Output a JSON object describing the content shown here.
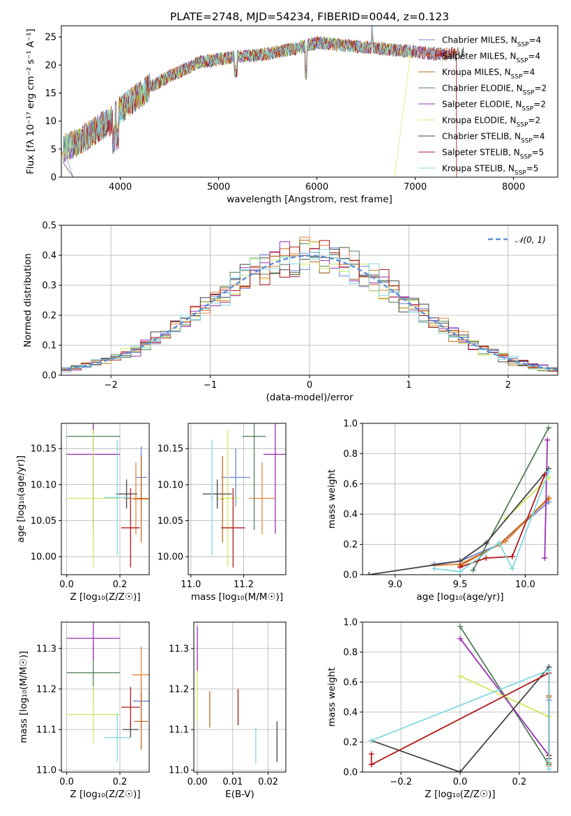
{
  "title": "PLATE=2748, MJD=54234, FIBERID=0044, z=0.123",
  "colors": {
    "Chabrier MILES": "#6a85d6",
    "Salpeter MILES": "#e8833a",
    "Kroupa MILES": "#c06a1a",
    "Chabrier ELODIE": "#4f7f57",
    "Salpeter ELODIE": "#9a2fb5",
    "Kroupa ELODIE": "#cfe860",
    "Chabrier STELIB": "#444444",
    "Salpeter STELIB": "#b01818",
    "Kroupa STELIB": "#7fd8e0",
    "gauss": "#5b8ed6"
  },
  "chart_data": [
    {
      "id": "spectrum",
      "type": "line",
      "xlabel": "wavelength [Angstrom, rest frame]",
      "ylabel": "Flux [f_λ 10^-17 erg cm^-2 s^-1 A^-1]",
      "xlim": [
        3400,
        8450
      ],
      "ylim": [
        0,
        27
      ],
      "xticks": [
        4000,
        5000,
        6000,
        7000,
        8000
      ],
      "yticks": [
        0,
        5,
        10,
        15,
        20,
        25
      ],
      "legend_position": "right",
      "series": [
        {
          "name": "Chabrier MILES",
          "nssp": "4"
        },
        {
          "name": "Salpeter MILES",
          "nssp": "4"
        },
        {
          "name": "Kroupa MILES",
          "nssp": "4"
        },
        {
          "name": "Chabrier ELODIE",
          "nssp": "2"
        },
        {
          "name": "Salpeter ELODIE",
          "nssp": "2"
        },
        {
          "name": "Kroupa ELODIE",
          "nssp": "2"
        },
        {
          "name": "Chabrier STELIB",
          "nssp": "4"
        },
        {
          "name": "Salpeter STELIB",
          "nssp": "5"
        },
        {
          "name": "Kroupa STELIB",
          "nssp": "5"
        }
      ],
      "continuum": {
        "x": [
          3400,
          3600,
          3800,
          3900,
          4000,
          4100,
          4300,
          4500,
          4800,
          5000,
          5200,
          5500,
          5800,
          6000,
          6300,
          6600,
          6900,
          7200,
          7500
        ],
        "y": [
          5,
          6.5,
          9,
          10,
          12,
          13.5,
          16,
          18,
          20.5,
          21,
          21.5,
          22,
          23,
          24,
          23.5,
          23,
          22.5,
          22,
          22
        ]
      }
    },
    {
      "id": "residuals",
      "type": "histogram",
      "xlabel": "(data-model)/error",
      "ylabel": "Normed distribution",
      "xlim": [
        -2.5,
        2.5
      ],
      "ylim": [
        0,
        0.5
      ],
      "xticks": [
        -2,
        -1,
        0,
        1,
        2
      ],
      "yticks": [
        0.0,
        0.1,
        0.2,
        0.3,
        0.4,
        0.5
      ],
      "legend": "N(0,1)",
      "legend_position": "top-right",
      "bin_width": 0.1
    },
    {
      "id": "age-vs-Z",
      "type": "errorbar",
      "xlabel": "Z [log10(Z/Z_sun)]",
      "ylabel": "age [log10(age/yr)]",
      "xlim": [
        -0.02,
        0.31
      ],
      "ylim": [
        9.975,
        10.185
      ],
      "xticks": [
        0.0,
        0.2
      ],
      "yticks": [
        10.0,
        10.05,
        10.1,
        10.15
      ],
      "points": [
        {
          "name": "Chabrier MILES",
          "x": 0.28,
          "y": 10.11,
          "xerr": 0.022,
          "yerr": 0.043
        },
        {
          "name": "Salpeter MILES",
          "x": 0.26,
          "y": 10.081,
          "xerr": 0.045,
          "yerr": 0.05
        },
        {
          "name": "Kroupa MILES",
          "x": 0.28,
          "y": 10.08,
          "xerr": 0.03,
          "yerr": 0.06
        },
        {
          "name": "Chabrier ELODIE",
          "x": 0.1,
          "y": 10.167,
          "xerr": 0.1,
          "yerr": 0.13
        },
        {
          "name": "Salpeter ELODIE",
          "x": 0.1,
          "y": 10.142,
          "xerr": 0.1,
          "yerr": 0.11
        },
        {
          "name": "Kroupa ELODIE",
          "x": 0.1,
          "y": 10.081,
          "xerr": 0.1,
          "yerr": 0.095
        },
        {
          "name": "Chabrier STELIB",
          "x": 0.225,
          "y": 10.087,
          "xerr": 0.04,
          "yerr": 0.02
        },
        {
          "name": "Salpeter STELIB",
          "x": 0.24,
          "y": 10.04,
          "xerr": 0.035,
          "yerr": 0.055
        },
        {
          "name": "Kroupa STELIB",
          "x": 0.19,
          "y": 10.082,
          "xerr": 0.05,
          "yerr": 0.08
        }
      ]
    },
    {
      "id": "age-vs-mass",
      "type": "errorbar",
      "xlabel": "mass [log10(M/M_sun)]",
      "ylabel": "",
      "xlim": [
        10.99,
        11.36
      ],
      "ylim": [
        9.975,
        10.185
      ],
      "xticks": [
        11.0,
        11.2
      ],
      "yticks": [
        10.0,
        10.05,
        10.1,
        10.15
      ],
      "points": [
        {
          "name": "Chabrier MILES",
          "x": 11.17,
          "y": 10.11,
          "xerr": 0.055,
          "yerr": 0.04
        },
        {
          "name": "Salpeter MILES",
          "x": 11.27,
          "y": 10.081,
          "xerr": 0.05,
          "yerr": 0.05
        },
        {
          "name": "Kroupa MILES",
          "x": 11.12,
          "y": 10.08,
          "xerr": 0.005,
          "yerr": 0.06
        },
        {
          "name": "Chabrier ELODIE",
          "x": 11.24,
          "y": 10.167,
          "xerr": 0.045,
          "yerr": 0.13
        },
        {
          "name": "Salpeter ELODIE",
          "x": 11.32,
          "y": 10.142,
          "xerr": 0.045,
          "yerr": 0.11
        },
        {
          "name": "Kroupa ELODIE",
          "x": 11.14,
          "y": 10.081,
          "xerr": 0.045,
          "yerr": 0.095
        },
        {
          "name": "Chabrier STELIB",
          "x": 11.1,
          "y": 10.087,
          "xerr": 0.055,
          "yerr": 0.02
        },
        {
          "name": "Salpeter STELIB",
          "x": 11.16,
          "y": 10.04,
          "xerr": 0.045,
          "yerr": 0.055
        },
        {
          "name": "Kroupa STELIB",
          "x": 11.08,
          "y": 10.082,
          "xerr": 0.005,
          "yerr": 0.08
        }
      ]
    },
    {
      "id": "weight-vs-age",
      "type": "line",
      "xlabel": "age [log10(age/yr)]",
      "ylabel": "mass weight",
      "xlim": [
        8.75,
        10.25
      ],
      "ylim": [
        0,
        1.0
      ],
      "xticks": [
        9.0,
        9.5,
        10.0
      ],
      "yticks": [
        0.0,
        0.2,
        0.4,
        0.6,
        0.8,
        1.0
      ],
      "series": [
        {
          "name": "Chabrier MILES",
          "x": [
            9.3,
            9.5,
            9.8,
            10.18
          ],
          "y": [
            0.07,
            0.09,
            0.2,
            0.48
          ]
        },
        {
          "name": "Salpeter MILES",
          "x": [
            9.3,
            9.5,
            9.85,
            10.18
          ],
          "y": [
            0.06,
            0.07,
            0.22,
            0.51
          ]
        },
        {
          "name": "Kroupa MILES",
          "x": [
            9.5,
            9.8,
            10.18
          ],
          "y": [
            0.06,
            0.2,
            0.5
          ]
        },
        {
          "name": "Chabrier ELODIE",
          "x": [
            9.6,
            10.18
          ],
          "y": [
            0.03,
            0.97
          ]
        },
        {
          "name": "Salpeter ELODIE",
          "x": [
            10.15,
            10.17
          ],
          "y": [
            0.11,
            0.89
          ]
        },
        {
          "name": "Kroupa ELODIE",
          "x": [
            9.85,
            10.18
          ],
          "y": [
            0.37,
            0.64
          ]
        },
        {
          "name": "Chabrier STELIB",
          "x": [
            8.8,
            9.5,
            9.7,
            10.18
          ],
          "y": [
            0.0,
            0.09,
            0.21,
            0.7
          ]
        },
        {
          "name": "Salpeter STELIB",
          "x": [
            9.5,
            9.7,
            9.9,
            10.15
          ],
          "y": [
            0.05,
            0.11,
            0.12,
            0.66
          ]
        },
        {
          "name": "Kroupa STELIB",
          "x": [
            9.3,
            9.5,
            9.8,
            9.9,
            10.18
          ],
          "y": [
            0.04,
            0.02,
            0.21,
            0.04,
            0.68
          ]
        }
      ]
    },
    {
      "id": "mass-vs-Z",
      "type": "errorbar",
      "xlabel": "Z [log10(Z/Z_sun)]",
      "ylabel": "mass [log10(M/M_sun)]",
      "xlim": [
        -0.02,
        0.31
      ],
      "ylim": [
        10.995,
        11.365
      ],
      "xticks": [
        0.0,
        0.2
      ],
      "yticks": [
        11.0,
        11.1,
        11.2,
        11.3
      ],
      "points": [
        {
          "name": "Chabrier MILES",
          "x": 0.28,
          "y": 11.17,
          "xerr": 0.03,
          "yerr": 0.06
        },
        {
          "name": "Salpeter MILES",
          "x": 0.28,
          "y": 11.235,
          "xerr": 0.035,
          "yerr": 0.07
        },
        {
          "name": "Kroupa MILES",
          "x": 0.28,
          "y": 11.12,
          "xerr": 0.025,
          "yerr": 0.07
        },
        {
          "name": "Chabrier ELODIE",
          "x": 0.1,
          "y": 11.24,
          "xerr": 0.1,
          "yerr": 0.07
        },
        {
          "name": "Salpeter ELODIE",
          "x": 0.1,
          "y": 11.325,
          "xerr": 0.1,
          "yerr": 0.055
        },
        {
          "name": "Kroupa ELODIE",
          "x": 0.1,
          "y": 11.137,
          "xerr": 0.1,
          "yerr": 0.07
        },
        {
          "name": "Chabrier STELIB",
          "x": 0.24,
          "y": 11.1,
          "xerr": 0.03,
          "yerr": 0.02
        },
        {
          "name": "Salpeter STELIB",
          "x": 0.24,
          "y": 11.155,
          "xerr": 0.035,
          "yerr": 0.05
        },
        {
          "name": "Kroupa STELIB",
          "x": 0.19,
          "y": 11.08,
          "xerr": 0.05,
          "yerr": 0.06
        }
      ]
    },
    {
      "id": "mass-vs-ebv",
      "type": "errorbar",
      "xlabel": "E(B-V)",
      "ylabel": "",
      "xlim": [
        -0.001,
        0.025
      ],
      "ylim": [
        10.995,
        11.365
      ],
      "xticks": [
        0.0,
        0.01,
        0.02
      ],
      "yticks": [
        11.0,
        11.1,
        11.2,
        11.3
      ],
      "points": [
        {
          "name": "Kroupa ELODIE",
          "x": 0.0,
          "y": 11.2,
          "xerr": 0,
          "yerr": 0.08
        },
        {
          "name": "Salpeter ELODIE",
          "x": 0.0,
          "y": 11.3,
          "xerr": 0,
          "yerr": 0.055
        },
        {
          "name": "Kroupa MILES",
          "x": 0.0035,
          "y": 11.15,
          "xerr": 0,
          "yerr": 0.045
        },
        {
          "name": "Salpeter STELIB",
          "x": 0.0115,
          "y": 11.155,
          "xerr": 0,
          "yerr": 0.045
        },
        {
          "name": "Kroupa STELIB",
          "x": 0.0165,
          "y": 11.06,
          "xerr": 0,
          "yerr": 0.045
        },
        {
          "name": "Chabrier STELIB",
          "x": 0.0225,
          "y": 11.07,
          "xerr": 0,
          "yerr": 0.05
        }
      ]
    },
    {
      "id": "weight-vs-Z",
      "type": "line",
      "xlabel": "Z [log10(Z/Z_sun)]",
      "ylabel": "mass weight",
      "xlim": [
        -0.33,
        0.33
      ],
      "ylim": [
        0,
        1.0
      ],
      "xticks": [
        -0.2,
        0.0,
        0.2
      ],
      "yticks": [
        0.0,
        0.2,
        0.4,
        0.6,
        0.8,
        1.0
      ],
      "series": [
        {
          "name": "Chabrier MILES",
          "x": [
            0.3,
            0.3
          ],
          "y": [
            0.05,
            0.48
          ]
        },
        {
          "name": "Salpeter MILES",
          "x": [
            0.3,
            0.3
          ],
          "y": [
            0.04,
            0.51
          ]
        },
        {
          "name": "Kroupa MILES",
          "x": [
            0.3,
            0.3
          ],
          "y": [
            0.06,
            0.5
          ]
        },
        {
          "name": "Chabrier ELODIE",
          "x": [
            0.0,
            0.3
          ],
          "y": [
            0.97,
            0.05
          ]
        },
        {
          "name": "Salpeter ELODIE",
          "x": [
            0.0,
            0.3
          ],
          "y": [
            0.89,
            0.11
          ]
        },
        {
          "name": "Kroupa ELODIE",
          "x": [
            0.0,
            0.3
          ],
          "y": [
            0.64,
            0.37
          ]
        },
        {
          "name": "Chabrier STELIB",
          "x": [
            -0.3,
            0.0,
            0.3,
            0.3
          ],
          "y": [
            0.21,
            0.0,
            0.7,
            0.09
          ]
        },
        {
          "name": "Salpeter STELIB",
          "x": [
            -0.3,
            -0.3,
            0.3,
            0.3
          ],
          "y": [
            0.12,
            0.05,
            0.66,
            0.11
          ]
        },
        {
          "name": "Kroupa STELIB",
          "x": [
            -0.3,
            0.3,
            0.3
          ],
          "y": [
            0.21,
            0.68,
            0.02
          ]
        }
      ]
    }
  ]
}
